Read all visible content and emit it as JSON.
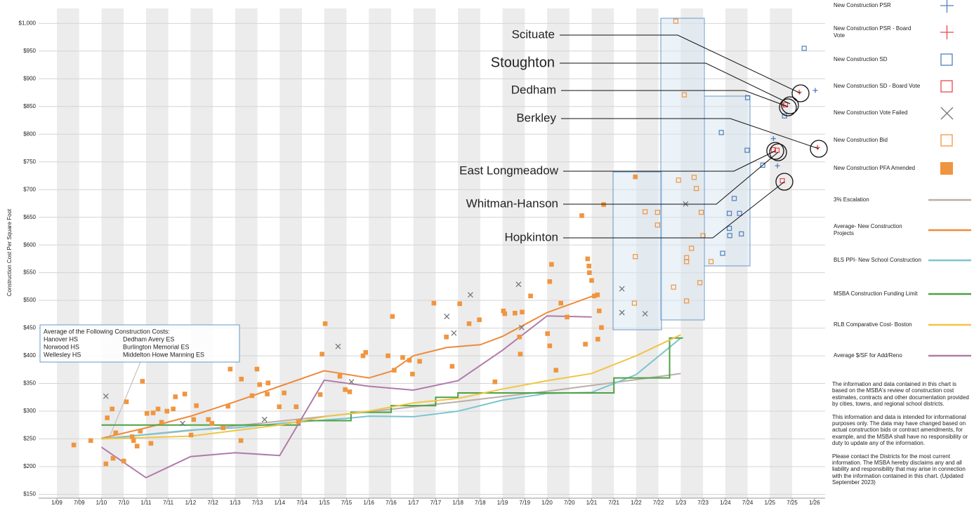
{
  "chart_data": {
    "type": "scatter",
    "y_label": "Construction Cost Per Square Foot",
    "xlim": [
      2008.59,
      2026.24
    ],
    "ylim": [
      143,
      1027
    ],
    "xticks": [
      {
        "value": 2009,
        "label": "1/09"
      },
      {
        "value": 2009.5,
        "label": "7/09"
      },
      {
        "value": 2010,
        "label": "1/10"
      },
      {
        "value": 2010.5,
        "label": "7/10"
      },
      {
        "value": 2011,
        "label": "1/11"
      },
      {
        "value": 2011.5,
        "label": "7/11"
      },
      {
        "value": 2012,
        "label": "1/12"
      },
      {
        "value": 2012.5,
        "label": "7/12"
      },
      {
        "value": 2013,
        "label": "1/13"
      },
      {
        "value": 2013.5,
        "label": "7/13"
      },
      {
        "value": 2014,
        "label": "1/14"
      },
      {
        "value": 2014.5,
        "label": "7/14"
      },
      {
        "value": 2015,
        "label": "1/15"
      },
      {
        "value": 2015.5,
        "label": "7/15"
      },
      {
        "value": 2016,
        "label": "1/16"
      },
      {
        "value": 2016.5,
        "label": "7/16"
      },
      {
        "value": 2017,
        "label": "1/17"
      },
      {
        "value": 2017.5,
        "label": "7/17"
      },
      {
        "value": 2018,
        "label": "1/18"
      },
      {
        "value": 2018.5,
        "label": "7/18"
      },
      {
        "value": 2019,
        "label": "1/19"
      },
      {
        "value": 2019.5,
        "label": "7/19"
      },
      {
        "value": 2020,
        "label": "1/20"
      },
      {
        "value": 2020.5,
        "label": "7/20"
      },
      {
        "value": 2021,
        "label": "1/21"
      },
      {
        "value": 2021.5,
        "label": "7/21"
      },
      {
        "value": 2022,
        "label": "1/22"
      },
      {
        "value": 2022.5,
        "label": "7/22"
      },
      {
        "value": 2023,
        "label": "1/23"
      },
      {
        "value": 2023.5,
        "label": "7/23"
      },
      {
        "value": 2024,
        "label": "1/24"
      },
      {
        "value": 2024.5,
        "label": "7/24"
      },
      {
        "value": 2025,
        "label": "1/25"
      },
      {
        "value": 2025.5,
        "label": "7/25"
      },
      {
        "value": 2026,
        "label": "1/26"
      }
    ],
    "yticks": [
      {
        "value": 150,
        "label": "$150"
      },
      {
        "value": 200,
        "label": "$200"
      },
      {
        "value": 250,
        "label": "$250"
      },
      {
        "value": 300,
        "label": "$300"
      },
      {
        "value": 350,
        "label": "$350"
      },
      {
        "value": 400,
        "label": "$400"
      },
      {
        "value": 450,
        "label": "$450"
      },
      {
        "value": 500,
        "label": "$500"
      },
      {
        "value": 550,
        "label": "$550"
      },
      {
        "value": 600,
        "label": "$600"
      },
      {
        "value": 650,
        "label": "$650"
      },
      {
        "value": 700,
        "label": "$700"
      },
      {
        "value": 750,
        "label": "$750"
      },
      {
        "value": 800,
        "label": "$800"
      },
      {
        "value": 850,
        "label": "$850"
      },
      {
        "value": 900,
        "label": "$900"
      },
      {
        "value": 950,
        "label": "$950"
      },
      {
        "value": 1000,
        "label": "$1,000"
      }
    ],
    "grid": true,
    "series": [
      {
        "name": "New Construction PSR",
        "color": "#4f7fbf",
        "marker": "plus",
        "x": [
          2025.08,
          2025.17,
          2026.02
        ],
        "values": [
          792,
          743,
          879
        ]
      },
      {
        "name": "New Construction PSR - Board Vote",
        "color": "#e8474a",
        "marker": "plus",
        "x": [
          2025.66,
          2026.07,
          2025.31
        ],
        "values": [
          876,
          776,
          852
        ]
      },
      {
        "name": "New Construction SD",
        "color": "#4f7fbf",
        "marker": "square-open",
        "x": [
          2023.91,
          2024.2,
          2024.09,
          2024.09,
          2024.1,
          2024.32,
          2024.36,
          2023.94,
          2024.5,
          2024.49,
          2024.84,
          2025.33,
          2025.77
        ],
        "values": [
          803,
          684,
          657,
          630,
          617,
          657,
          620,
          585,
          866,
          771,
          744,
          833,
          955
        ]
      },
      {
        "name": "New Construction SD - Board Vote",
        "color": "#e8474a",
        "marker": "square-open",
        "x": [
          2025.28,
          2025.08,
          2025.16,
          2025.35
        ],
        "values": [
          716,
          772,
          771,
          853
        ]
      },
      {
        "name": "New Construction Vote Failed",
        "color": "#777777",
        "marker": "x",
        "x": [
          2010.1,
          2011.82,
          2013.66,
          2015.31,
          2015.61,
          2017.75,
          2017.91,
          2018.28,
          2019.36,
          2019.43,
          2021.68,
          2021.68,
          2022.2,
          2023.11
        ],
        "values": [
          327,
          278,
          285,
          417,
          353,
          471,
          441,
          510,
          529,
          451,
          521,
          478,
          476,
          674
        ]
      },
      {
        "name": "New Construction Bid",
        "color": "#f0953f",
        "marker": "square-open",
        "x": [
          2022.89,
          2023.08,
          2021.98,
          2021.96,
          2022.2,
          2022.48,
          2022.48,
          2022.84,
          2022.95,
          2023.13,
          2023.13,
          2023.13,
          2023.24,
          2023.3,
          2023.35,
          2023.43,
          2023.46,
          2023.5,
          2023.68
        ],
        "values": [
          1004,
          871,
          579,
          495,
          660,
          659,
          636,
          524,
          717,
          577,
          570,
          499,
          594,
          722,
          702,
          532,
          659,
          617,
          570
        ]
      },
      {
        "name": "New Construction PFA Amended",
        "color": "#f0953f",
        "marker": "square",
        "x": [
          2009.38,
          2009.76,
          2010.1,
          2010.13,
          2010.24,
          2010.26,
          2010.32,
          2010.5,
          2010.56,
          2010.69,
          2010.72,
          2010.8,
          2010.87,
          2010.92,
          2011.02,
          2011.11,
          2011.16,
          2011.27,
          2011.35,
          2011.47,
          2011.61,
          2011.66,
          2011.87,
          2012.01,
          2012.07,
          2012.13,
          2012.4,
          2012.48,
          2012.73,
          2012.84,
          2012.89,
          2013.13,
          2013.14,
          2013.38,
          2013.49,
          2013.55,
          2013.72,
          2013.74,
          2013.99,
          2014.1,
          2014.37,
          2014.42,
          2014.91,
          2014.95,
          2015.02,
          2015.35,
          2015.47,
          2015.57,
          2015.87,
          2015.93,
          2016.43,
          2016.53,
          2016.57,
          2016.76,
          2016.91,
          2016.98,
          2017.14,
          2017.46,
          2017.74,
          2017.87,
          2018.04,
          2018.25,
          2018.48,
          2018.83,
          2019.02,
          2019.05,
          2019.28,
          2019.38,
          2019.4,
          2019.44,
          2019.63,
          2020.01,
          2020.06,
          2020.06,
          2020.1,
          2020.2,
          2020.31,
          2020.45,
          2020.78,
          2020.86,
          2020.91,
          2020.94,
          2020.95,
          2021.0,
          2021.06,
          2021.13,
          2021.17,
          2021.22,
          2021.27,
          2021.14,
          2021.98
        ],
        "values": [
          239,
          247,
          205,
          288,
          304,
          215,
          261,
          210,
          317,
          254,
          247,
          237,
          264,
          354,
          296,
          242,
          297,
          304,
          280,
          300,
          304,
          326,
          331,
          257,
          285,
          310,
          285,
          278,
          270,
          309,
          376,
          247,
          358,
          328,
          376,
          348,
          331,
          351,
          308,
          333,
          308,
          281,
          330,
          403,
          458,
          363,
          339,
          335,
          400,
          406,
          400,
          471,
          374,
          397,
          392,
          367,
          390,
          495,
          434,
          381,
          494,
          458,
          465,
          353,
          481,
          476,
          477,
          434,
          403,
          479,
          508,
          440,
          418,
          534,
          565,
          374,
          495,
          470,
          653,
          421,
          575,
          562,
          550,
          536,
          508,
          510,
          481,
          451,
          673,
          430,
          723
        ]
      },
      {
        "name": "3% Escalation",
        "color": "#bcaea6",
        "marker": "line",
        "x": [
          2010,
          2012,
          2014,
          2016,
          2018,
          2020,
          2022,
          2023
        ],
        "values": [
          250,
          265,
          282,
          299,
          317,
          336,
          357,
          368
        ]
      },
      {
        "name": "Average- New Construction Projects",
        "color": "#ef8a3a",
        "marker": "line",
        "x": [
          2010,
          2011,
          2012,
          2013,
          2014,
          2015,
          2016,
          2016.5,
          2017,
          2017.75,
          2018.5,
          2019,
          2020,
          2021.03
        ],
        "values": [
          251,
          270,
          291,
          317,
          345,
          373,
          360,
          372,
          400,
          415,
          420,
          435,
          478,
          508
        ]
      },
      {
        "name": "BLS PPI- New School Construction",
        "color": "#7cc4cf",
        "marker": "line",
        "x": [
          2010,
          2011,
          2012,
          2013,
          2014,
          2015,
          2015.5,
          2016,
          2017,
          2018,
          2019,
          2020,
          2021,
          2022,
          2023
        ],
        "values": [
          250,
          258,
          266,
          270,
          278,
          284,
          287,
          291,
          290,
          300,
          320,
          332,
          334,
          366,
          432
        ]
      },
      {
        "name": "MSBA Construction Funding Limit",
        "color": "#4da244",
        "marker": "line",
        "x": [
          2010,
          2014.45,
          2014.45,
          2015.6,
          2015.6,
          2016.5,
          2016.5,
          2017.5,
          2017.5,
          2018,
          2018,
          2021.5,
          2021.5,
          2022.75,
          2022.75,
          2023.05
        ],
        "values": [
          275,
          275,
          283,
          283,
          298,
          298,
          310,
          310,
          325,
          325,
          333,
          333,
          360,
          360,
          432,
          432
        ]
      },
      {
        "name": "RLB Comparative Cost- Boston",
        "color": "#f0c544",
        "marker": "line",
        "x": [
          2010,
          2012,
          2013,
          2014,
          2015,
          2016,
          2017,
          2018,
          2019,
          2020,
          2021,
          2022,
          2023
        ],
        "values": [
          250,
          255,
          265,
          275,
          290,
          300,
          315,
          323,
          340,
          355,
          368,
          400,
          438
        ]
      },
      {
        "name": "Average $/SF for Add/Reno",
        "color": "#b17ba9",
        "marker": "line",
        "x": [
          2010,
          2011,
          2012,
          2013,
          2014,
          2015,
          2016,
          2017,
          2018,
          2019,
          2020,
          2021
        ],
        "values": [
          235,
          180,
          218,
          225,
          220,
          356,
          345,
          338,
          355,
          410,
          472,
          470
        ]
      }
    ],
    "callouts": [
      "Scituate",
      "Stoughton",
      "Dedham",
      "Berkley",
      "East Longmeadow",
      "Whitman-Hanson",
      "Hopkinton"
    ],
    "average_box": {
      "title": "Average of the Following Construction Costs:",
      "rows": [
        [
          "Hanover HS",
          "Dedham Avery ES"
        ],
        [
          "Norwood HS",
          "Burlington Memorial ES"
        ],
        [
          "Wellesley HS",
          "Middelton Howe Manning ES"
        ]
      ]
    },
    "notes": [
      "The information and data contained in this chart is based on the MSBA's review of construction cost estimates, contracts and other documentation provided by cities, towns, and regional school districts.",
      "This information and data is intended for informational purposes only. The data may have changed based on actual construction bids or contract amendments, for example, and the MSBA shall have no responsibility or duty to update any of the information.",
      "Please contact the Districts for the most current information. The MSBA hereby disclaims any and all liability and responsibility that may arise in connection with the information contained in this chart. (Updated September 2023)"
    ]
  }
}
